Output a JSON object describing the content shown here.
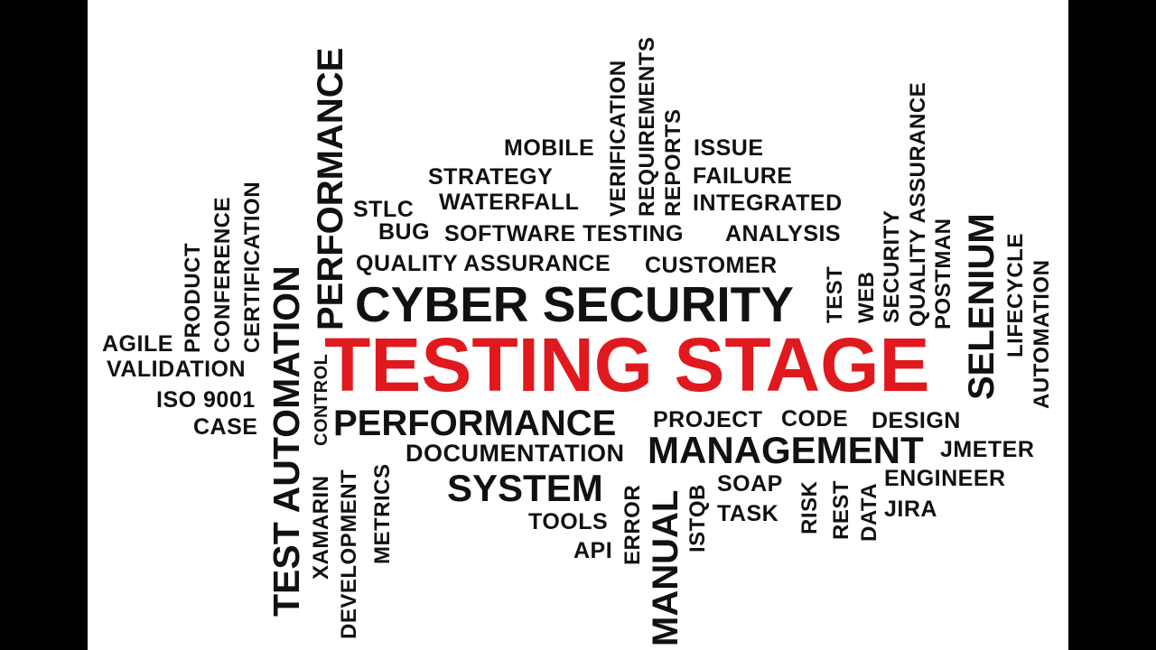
{
  "colors": {
    "background": "#ffffff",
    "frame": "#000000",
    "text": "#111111",
    "highlight": "#e0191e"
  },
  "words": {
    "testing_stage": "TESTING STAGE",
    "cyber_security": "CYBER SECURITY",
    "performance_horizontal": "PERFORMANCE",
    "management": "MANAGEMENT",
    "system": "SYSTEM",
    "documentation": "DOCUMENTATION",
    "project": "PROJECT",
    "code": "CODE",
    "design": "DESIGN",
    "jmeter": "JMETER",
    "engineer": "ENGINEER",
    "jira": "JIRA",
    "soap": "SOAP",
    "task": "TASK",
    "tools": "TOOLS",
    "api": "API",
    "quality_assurance_horizontal": "QUALITY ASSURANCE",
    "customer": "CUSTOMER",
    "bug": "BUG",
    "software_testing": "SOFTWARE TESTING",
    "analysis": "ANALYSIS",
    "stlc": "STLC",
    "waterfall": "WATERFALL",
    "integrated": "INTEGRATED",
    "strategy": "STRATEGY",
    "failure": "FAILURE",
    "mobile": "MOBILE",
    "issue": "ISSUE",
    "agile": "AGILE",
    "validation": "VALIDATION",
    "iso_9001": "ISO 9001",
    "case": "CASE",
    "product": "PRODUCT",
    "conference": "CONFERENCE",
    "certification": "CERTIFICATION",
    "test_automation": "TEST AUTOMATION",
    "performance_vertical": "PERFORMANCE",
    "control": "CONTROL",
    "xamarin": "XAMARIN",
    "development": "DEVELOPMENT",
    "metrics": "METRICS",
    "verification": "VERIFICATION",
    "requirements": "REQUIREMENTS",
    "reports": "REPORTS",
    "error": "ERROR",
    "manual": "MANUAL",
    "istqb": "ISTQB",
    "risk": "RISK",
    "rest": "REST",
    "data": "DATA",
    "test": "TEST",
    "web": "WEB",
    "security": "SECURITY",
    "quality_assurance_vertical": "QUALITY ASSURANCE",
    "postman": "POSTMAN",
    "selenium": "SELENIUM",
    "lifecycle": "LIFECYCLE",
    "automation": "AUTOMATION"
  }
}
